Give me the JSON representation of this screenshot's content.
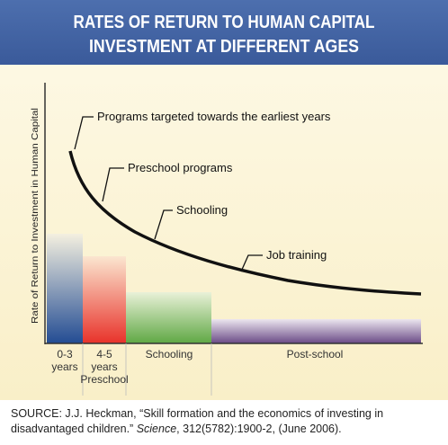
{
  "header": {
    "title_line1": "RATES OF RETURN TO HUMAN CAPITAL",
    "title_line2": "INVESTMENT AT DIFFERENT AGES"
  },
  "y_axis_label": "Rate of Return to Investment in Human Capital",
  "annotations": [
    "Programs targeted towards the earliest years",
    "Preschool programs",
    "Schooling",
    "Job training"
  ],
  "stages": [
    {
      "lines": [
        "0-3",
        "years"
      ]
    },
    {
      "lines": [
        "4-5",
        "years",
        "Preschool"
      ]
    },
    {
      "lines": [
        "Schooling"
      ]
    },
    {
      "lines": [
        "Post-school"
      ]
    }
  ],
  "source": {
    "before": "SOURCE: J.J. Heckman, “Skill formation and the economics of investing in disadvantaged children.”",
    "journal": "Science",
    "after": ", 312(5782):1900-2, (June 2006)."
  }
}
